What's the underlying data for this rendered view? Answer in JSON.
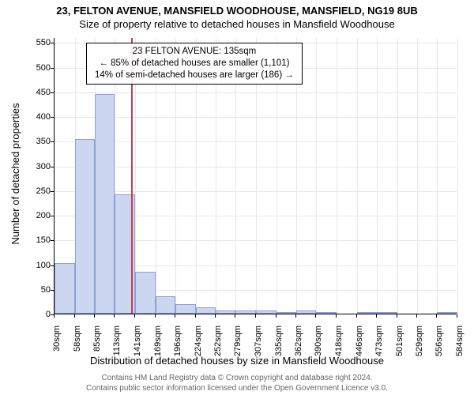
{
  "title_main": "23, FELTON AVENUE, MANSFIELD WOODHOUSE, MANSFIELD, NG19 8UB",
  "title_sub": "Size of property relative to detached houses in Mansfield Woodhouse",
  "y_axis_label": "Number of detached properties",
  "x_axis_label": "Distribution of detached houses by size in Mansfield Woodhouse",
  "chart": {
    "type": "histogram",
    "bar_fill": "#cdd6f1",
    "bar_border": "#8da0d6",
    "grid_color": "#e6e8f0",
    "axis_color": "#000000",
    "marker_color": "#c73a52",
    "background": "#ffffff",
    "ylim_max": 560,
    "yticks": [
      0,
      50,
      100,
      150,
      200,
      250,
      300,
      350,
      400,
      450,
      500,
      550
    ],
    "bars": [
      {
        "x0": 30,
        "x1": 58,
        "value": 103
      },
      {
        "x0": 58,
        "x1": 85,
        "value": 353
      },
      {
        "x0": 85,
        "x1": 113,
        "value": 445
      },
      {
        "x0": 113,
        "x1": 141,
        "value": 242
      },
      {
        "x0": 141,
        "x1": 169,
        "value": 85
      },
      {
        "x0": 169,
        "x1": 196,
        "value": 35
      },
      {
        "x0": 196,
        "x1": 224,
        "value": 20
      },
      {
        "x0": 224,
        "x1": 252,
        "value": 13
      },
      {
        "x0": 252,
        "x1": 279,
        "value": 6
      },
      {
        "x0": 279,
        "x1": 307,
        "value": 7
      },
      {
        "x0": 307,
        "x1": 335,
        "value": 6
      },
      {
        "x0": 335,
        "x1": 362,
        "value": 2
      },
      {
        "x0": 362,
        "x1": 390,
        "value": 6
      },
      {
        "x0": 390,
        "x1": 418,
        "value": 2
      },
      {
        "x0": 418,
        "x1": 446,
        "value": 0
      },
      {
        "x0": 446,
        "x1": 473,
        "value": 2
      },
      {
        "x0": 473,
        "x1": 501,
        "value": 1
      },
      {
        "x0": 501,
        "x1": 529,
        "value": 0
      },
      {
        "x0": 529,
        "x1": 556,
        "value": 0
      },
      {
        "x0": 556,
        "x1": 584,
        "value": 1
      }
    ],
    "x_domain_min": 30,
    "x_domain_max": 584,
    "xticks": [
      "30sqm",
      "58sqm",
      "85sqm",
      "113sqm",
      "141sqm",
      "169sqm",
      "196sqm",
      "224sqm",
      "252sqm",
      "279sqm",
      "307sqm",
      "335sqm",
      "362sqm",
      "390sqm",
      "418sqm",
      "446sqm",
      "473sqm",
      "501sqm",
      "529sqm",
      "556sqm",
      "584sqm"
    ],
    "marker_value": 135
  },
  "annotation": {
    "line1": "23 FELTON AVENUE: 135sqm",
    "line2": "← 85% of detached houses are smaller (1,101)",
    "line3": "14% of semi-detached houses are larger (186) →"
  },
  "footer_line1": "Contains HM Land Registry data © Crown copyright and database right 2024.",
  "footer_line2": "Contains public sector information licensed under the Open Government Licence v3.0."
}
